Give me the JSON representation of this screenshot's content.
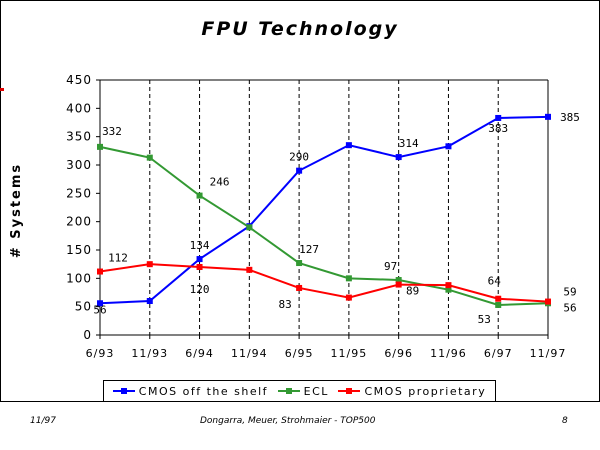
{
  "footer": {
    "date": "11/97",
    "authors": "Dongarra, Meuer, Strohmaier - TOP500",
    "page": "8"
  },
  "colors": {
    "cmos_shelf": "#0000ff",
    "ecl": "#339933",
    "cmos_prop": "#ff0000"
  },
  "chart_data": {
    "type": "line",
    "title": "FPU Technology",
    "xlabel": "",
    "ylabel": "# Systems",
    "ylim": [
      0,
      450
    ],
    "yticks": [
      0,
      50,
      100,
      150,
      200,
      250,
      300,
      350,
      400,
      450
    ],
    "grid": "vertical dashed lines at each category",
    "legend_position": "bottom",
    "categories": [
      "6/93",
      "11/93",
      "6/94",
      "11/94",
      "6/95",
      "11/95",
      "6/96",
      "11/96",
      "6/97",
      "11/97"
    ],
    "series": [
      {
        "name": "CMOS off the shelf",
        "color": "#0000ff",
        "values": [
          56,
          60,
          134,
          192,
          290,
          335,
          314,
          333,
          383,
          385
        ],
        "labels": [
          "56",
          null,
          "134",
          null,
          "290",
          null,
          "314",
          null,
          "383",
          "385"
        ]
      },
      {
        "name": "ECL",
        "color": "#339933",
        "values": [
          332,
          313,
          246,
          190,
          127,
          100,
          97,
          80,
          53,
          56
        ],
        "labels": [
          "332",
          null,
          "246",
          null,
          "127",
          null,
          "97",
          null,
          "53",
          "56"
        ]
      },
      {
        "name": "CMOS proprietary",
        "color": "#ff0000",
        "values": [
          112,
          125,
          120,
          115,
          83,
          66,
          89,
          88,
          64,
          59
        ],
        "labels": [
          "112",
          null,
          "120",
          null,
          "83",
          null,
          "89",
          null,
          "64",
          "59"
        ]
      }
    ]
  }
}
